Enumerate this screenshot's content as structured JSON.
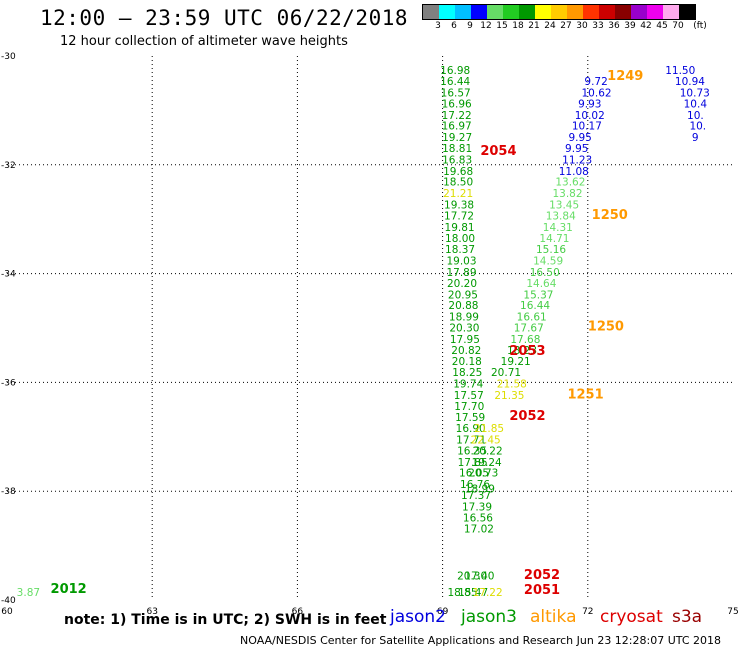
{
  "header": {
    "title": "12:00 — 23:59 UTC 06/22/2018",
    "subtitle": "12 hour collection of altimeter wave heights"
  },
  "color_scale": {
    "unit": "(ft)",
    "labels": [
      "3",
      "6",
      "9",
      "12",
      "15",
      "18",
      "21",
      "24",
      "27",
      "30",
      "33",
      "36",
      "39",
      "42",
      "45",
      "70"
    ],
    "colors": [
      "#808080",
      "#00ffff",
      "#00bfff",
      "#0000ff",
      "#66dd66",
      "#22cc22",
      "#009900",
      "#ffff00",
      "#ffcc00",
      "#ff9900",
      "#ff3300",
      "#cc0000",
      "#880000",
      "#9900cc",
      "#ee00ee",
      "#ffaaee",
      "#000000"
    ]
  },
  "footer": {
    "note": "note:  1) Time is in UTC;  2) SWH is in feet",
    "credit": "NOAA/NESDIS Center for Satellite Applications and Research    Jun 23 12:28:07 UTC 2018"
  },
  "satellites": [
    {
      "name": "jason2",
      "color": "#0000dd"
    },
    {
      "name": "jason3",
      "color": "#009900"
    },
    {
      "name": "altika",
      "color": "#ff9900"
    },
    {
      "name": "cryosat",
      "color": "#dd0000"
    },
    {
      "name": "s3a",
      "color": "#990000"
    }
  ],
  "chart_data": {
    "type": "scatter",
    "xlim": [
      60,
      75
    ],
    "ylim": [
      -40,
      -30
    ],
    "x_ticks": [
      60,
      63,
      66,
      69,
      72,
      75
    ],
    "y_ticks": [
      -30,
      -32,
      -34,
      -36,
      -38,
      -40
    ],
    "grid": true,
    "points": [
      {
        "x": 68.95,
        "y": -30.26,
        "v": "16.98",
        "c": "#009900"
      },
      {
        "x": 68.95,
        "y": -30.46,
        "v": "16.44",
        "c": "#009900"
      },
      {
        "x": 68.96,
        "y": -30.67,
        "v": "16.57",
        "c": "#009900"
      },
      {
        "x": 68.98,
        "y": -30.87,
        "v": "16.96",
        "c": "#009900"
      },
      {
        "x": 68.98,
        "y": -31.08,
        "v": "17.22",
        "c": "#009900"
      },
      {
        "x": 68.98,
        "y": -31.28,
        "v": "16.97",
        "c": "#009900"
      },
      {
        "x": 68.99,
        "y": -31.49,
        "v": "19.27",
        "c": "#009900"
      },
      {
        "x": 68.99,
        "y": -31.69,
        "v": "18.81",
        "c": "#009900"
      },
      {
        "x": 68.99,
        "y": -31.9,
        "v": "16.83",
        "c": "#009900"
      },
      {
        "x": 69.01,
        "y": -32.11,
        "v": "19.68",
        "c": "#009900"
      },
      {
        "x": 69.01,
        "y": -32.31,
        "v": "18.50",
        "c": "#009900"
      },
      {
        "x": 69.01,
        "y": -32.52,
        "v": "21.21",
        "c": "#dddd00"
      },
      {
        "x": 69.03,
        "y": -32.73,
        "v": "19.38",
        "c": "#009900"
      },
      {
        "x": 69.03,
        "y": -32.93,
        "v": "17.72",
        "c": "#009900"
      },
      {
        "x": 69.04,
        "y": -33.14,
        "v": "19.81",
        "c": "#009900"
      },
      {
        "x": 69.05,
        "y": -33.35,
        "v": "18.00",
        "c": "#009900"
      },
      {
        "x": 69.05,
        "y": -33.55,
        "v": "18.37",
        "c": "#009900"
      },
      {
        "x": 69.08,
        "y": -33.76,
        "v": "19.03",
        "c": "#009900"
      },
      {
        "x": 69.08,
        "y": -33.97,
        "v": "17.89",
        "c": "#009900"
      },
      {
        "x": 69.09,
        "y": -34.17,
        "v": "20.20",
        "c": "#009900"
      },
      {
        "x": 69.11,
        "y": -34.38,
        "v": "20.95",
        "c": "#009900"
      },
      {
        "x": 69.12,
        "y": -34.58,
        "v": "20.88",
        "c": "#009900"
      },
      {
        "x": 69.13,
        "y": -34.79,
        "v": "18.99",
        "c": "#009900"
      },
      {
        "x": 69.14,
        "y": -34.99,
        "v": "20.30",
        "c": "#009900"
      },
      {
        "x": 69.15,
        "y": -35.2,
        "v": "17.95",
        "c": "#009900"
      },
      {
        "x": 69.18,
        "y": -35.4,
        "v": "20.82",
        "c": "#009900"
      },
      {
        "x": 69.19,
        "y": -35.61,
        "v": "20.18",
        "c": "#009900"
      },
      {
        "x": 69.2,
        "y": -35.81,
        "v": "18.25",
        "c": "#009900"
      },
      {
        "x": 69.22,
        "y": -36.02,
        "v": "19.74",
        "c": "#009900"
      },
      {
        "x": 69.23,
        "y": -36.23,
        "v": "17.57",
        "c": "#009900"
      },
      {
        "x": 69.24,
        "y": -36.43,
        "v": "17.70",
        "c": "#009900"
      },
      {
        "x": 69.26,
        "y": -36.64,
        "v": "17.59",
        "c": "#009900"
      },
      {
        "x": 69.27,
        "y": -36.84,
        "v": "16.90",
        "c": "#009900"
      },
      {
        "x": 69.28,
        "y": -37.05,
        "v": "17.71",
        "c": "#009900"
      },
      {
        "x": 69.3,
        "y": -37.25,
        "v": "16.35",
        "c": "#009900"
      },
      {
        "x": 69.31,
        "y": -37.46,
        "v": "17.85",
        "c": "#009900"
      },
      {
        "x": 69.34,
        "y": -37.66,
        "v": "16.05",
        "c": "#009900"
      },
      {
        "x": 69.36,
        "y": -37.87,
        "v": "16.76",
        "c": "#009900"
      },
      {
        "x": 69.38,
        "y": -38.07,
        "v": "17.37",
        "c": "#009900"
      },
      {
        "x": 69.4,
        "y": -38.28,
        "v": "17.39",
        "c": "#009900"
      },
      {
        "x": 69.42,
        "y": -38.48,
        "v": "16.56",
        "c": "#009900"
      },
      {
        "x": 69.44,
        "y": -38.69,
        "v": "17.02",
        "c": "#009900"
      },
      {
        "x": 69.6,
        "y": -37.46,
        "v": "19.24",
        "c": "#009900"
      },
      {
        "x": 69.53,
        "y": -37.66,
        "v": "20.73",
        "c": "#009900"
      },
      {
        "x": 69.46,
        "y": -37.95,
        "v": "18.99",
        "c": "#009900"
      },
      {
        "x": 69.62,
        "y": -37.25,
        "v": "20.22",
        "c": "#009900"
      },
      {
        "x": 69.58,
        "y": -37.05,
        "v": "22.45",
        "c": "#dddd00"
      },
      {
        "x": 69.65,
        "y": -36.84,
        "v": "21.85",
        "c": "#dddd00"
      },
      {
        "x": 70.07,
        "y": -36.23,
        "v": "21.35",
        "c": "#dddd00"
      },
      {
        "x": 70.12,
        "y": -36.02,
        "v": "21.58",
        "c": "#dddd00"
      },
      {
        "x": 70.0,
        "y": -35.81,
        "v": "20.71",
        "c": "#009900"
      },
      {
        "x": 70.2,
        "y": -35.61,
        "v": "19.21",
        "c": "#009900"
      },
      {
        "x": 70.33,
        "y": -35.4,
        "v": "18.23",
        "c": "#009900"
      },
      {
        "x": 70.4,
        "y": -35.2,
        "v": "17.68",
        "c": "#44cc44"
      },
      {
        "x": 70.47,
        "y": -34.99,
        "v": "17.67",
        "c": "#44cc44"
      },
      {
        "x": 70.53,
        "y": -34.79,
        "v": "16.61",
        "c": "#44cc44"
      },
      {
        "x": 70.6,
        "y": -34.58,
        "v": "16.44",
        "c": "#44cc44"
      },
      {
        "x": 70.67,
        "y": -34.38,
        "v": "15.37",
        "c": "#44cc44"
      },
      {
        "x": 70.73,
        "y": -34.17,
        "v": "14.64",
        "c": "#66dd66"
      },
      {
        "x": 70.8,
        "y": -33.97,
        "v": "16.50",
        "c": "#44cc44"
      },
      {
        "x": 70.87,
        "y": -33.76,
        "v": "14.59",
        "c": "#66dd66"
      },
      {
        "x": 70.93,
        "y": -33.55,
        "v": "15.16",
        "c": "#44cc44"
      },
      {
        "x": 71.0,
        "y": -33.35,
        "v": "14.71",
        "c": "#66dd66"
      },
      {
        "x": 71.07,
        "y": -33.14,
        "v": "14.31",
        "c": "#66dd66"
      },
      {
        "x": 71.13,
        "y": -32.93,
        "v": "13.84",
        "c": "#66dd66"
      },
      {
        "x": 71.2,
        "y": -32.73,
        "v": "13.45",
        "c": "#66dd66"
      },
      {
        "x": 71.27,
        "y": -32.52,
        "v": "13.82",
        "c": "#66dd66"
      },
      {
        "x": 71.33,
        "y": -32.31,
        "v": "13.62",
        "c": "#66dd66"
      },
      {
        "x": 71.4,
        "y": -32.11,
        "v": "11.08",
        "c": "#0000dd"
      },
      {
        "x": 71.47,
        "y": -31.9,
        "v": "11.23",
        "c": "#0000dd"
      },
      {
        "x": 71.53,
        "y": -31.69,
        "v": "9.95",
        "c": "#0000dd"
      },
      {
        "x": 71.6,
        "y": -31.49,
        "v": "9.95",
        "c": "#0000dd"
      },
      {
        "x": 71.67,
        "y": -31.28,
        "v": "10.17",
        "c": "#0000dd"
      },
      {
        "x": 71.73,
        "y": -31.08,
        "v": "10.02",
        "c": "#0000dd"
      },
      {
        "x": 71.8,
        "y": -30.87,
        "v": "9.93",
        "c": "#0000dd"
      },
      {
        "x": 71.87,
        "y": -30.67,
        "v": "10.62",
        "c": "#0000dd"
      },
      {
        "x": 71.93,
        "y": -30.46,
        "v": "9.72",
        "c": "#0000dd"
      },
      {
        "x": 73.6,
        "y": -30.26,
        "v": "11.50",
        "c": "#0000dd"
      },
      {
        "x": 73.8,
        "y": -30.46,
        "v": "10.94",
        "c": "#0000dd"
      },
      {
        "x": 73.9,
        "y": -30.67,
        "v": "10.73",
        "c": "#0000dd"
      },
      {
        "x": 73.98,
        "y": -30.87,
        "v": "10.4",
        "c": "#0000dd"
      },
      {
        "x": 74.05,
        "y": -31.08,
        "v": "10.",
        "c": "#0000dd"
      },
      {
        "x": 74.1,
        "y": -31.28,
        "v": "10.",
        "c": "#0000dd"
      },
      {
        "x": 74.15,
        "y": -31.49,
        "v": "9",
        "c": "#0000dd"
      },
      {
        "x": 69.3,
        "y": -39.55,
        "v": "20.30",
        "c": "#009900"
      },
      {
        "x": 69.45,
        "y": -39.55,
        "v": "17.40",
        "c": "#009900"
      },
      {
        "x": 69.1,
        "y": -39.85,
        "v": "18.85",
        "c": "#009900"
      },
      {
        "x": 69.32,
        "y": -39.85,
        "v": "15.47",
        "c": "#009900"
      },
      {
        "x": 69.62,
        "y": -39.85,
        "v": "17.22",
        "c": "#dddd00"
      },
      {
        "x": 60.2,
        "y": -39.85,
        "v": "3.87",
        "c": "#66dd66"
      }
    ],
    "time_labels": [
      {
        "x": 69.78,
        "y": -31.73,
        "v": "2054",
        "c": "#dd0000"
      },
      {
        "x": 70.38,
        "y": -35.4,
        "v": "2053",
        "c": "#dd0000"
      },
      {
        "x": 70.38,
        "y": -36.6,
        "v": "2052",
        "c": "#dd0000"
      },
      {
        "x": 70.68,
        "y": -39.52,
        "v": "2052",
        "c": "#dd0000"
      },
      {
        "x": 70.68,
        "y": -39.8,
        "v": "2051",
        "c": "#dd0000"
      },
      {
        "x": 72.4,
        "y": -30.35,
        "v": "1249",
        "c": "#ff9900"
      },
      {
        "x": 72.08,
        "y": -32.9,
        "v": "1250",
        "c": "#ff9900"
      },
      {
        "x": 72.0,
        "y": -34.95,
        "v": "1250",
        "c": "#ff9900"
      },
      {
        "x": 71.58,
        "y": -36.2,
        "v": "1251",
        "c": "#ff9900"
      },
      {
        "x": 60.9,
        "y": -39.78,
        "v": "2012",
        "c": "#009900"
      }
    ]
  }
}
